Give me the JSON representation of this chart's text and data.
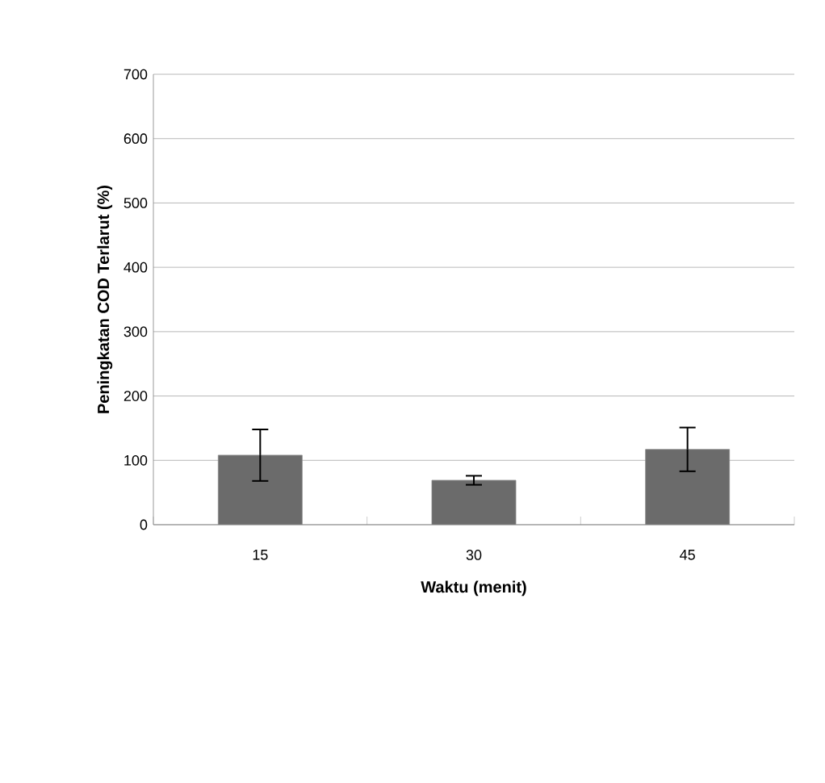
{
  "chart_data": {
    "type": "bar",
    "xlabel": "Waktu (menit)",
    "ylabel": "Peningkatan COD Terlarut (%)",
    "categories": [
      "15",
      "30",
      "45"
    ],
    "values": [
      108,
      69,
      117
    ],
    "errors": [
      40,
      7,
      34
    ],
    "color": "#6b6b6b",
    "ylim": [
      0,
      700
    ],
    "yticks": [
      0,
      100,
      200,
      300,
      400,
      500,
      600,
      700
    ],
    "grid": "y"
  }
}
